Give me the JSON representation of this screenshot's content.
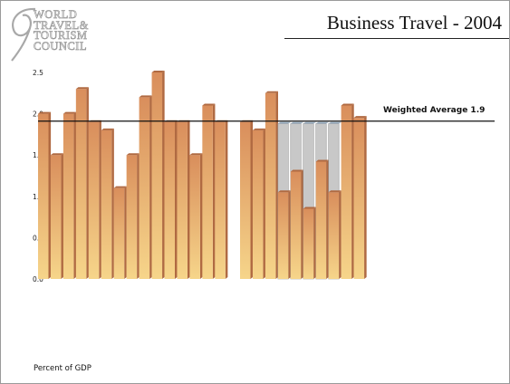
{
  "logo": {
    "lines": [
      "WORLD",
      "TRAVEL&",
      "TOURISM",
      "COUNCIL"
    ]
  },
  "title": "Business Travel - 2004",
  "annotation": "Weighted Average 1.9",
  "footnote": "Percent of GDP",
  "colors": {
    "bar_light": "#f6d58a",
    "bar_dark": "#d98e5c",
    "bar_top": "#b06a42",
    "ghost": "#c8c8c8",
    "average_line": "#111111"
  },
  "chart_data": {
    "type": "bar",
    "title": "Business Travel - 2004",
    "ylabel": "Percent of GDP",
    "ylim": [
      0,
      2.5
    ],
    "yticks": [
      "0.0",
      "0.5",
      "1.0",
      "1.5",
      "2.0",
      "2.5"
    ],
    "reference_line": {
      "label": "Weighted Average 1.9",
      "value": 1.9
    },
    "groups": [
      {
        "values": [
          2.0,
          1.5,
          2.0,
          2.3,
          1.9,
          1.8,
          1.1,
          1.5,
          2.2,
          2.5,
          1.9,
          1.9,
          1.5,
          2.1,
          1.9
        ]
      },
      {
        "values": [
          1.9,
          1.8,
          2.25,
          1.05,
          1.3,
          0.85,
          1.42,
          1.05,
          2.1,
          1.95
        ],
        "shaded_to": [
          null,
          null,
          null,
          1.88,
          1.88,
          1.88,
          1.88,
          1.88,
          null,
          null
        ]
      }
    ]
  }
}
